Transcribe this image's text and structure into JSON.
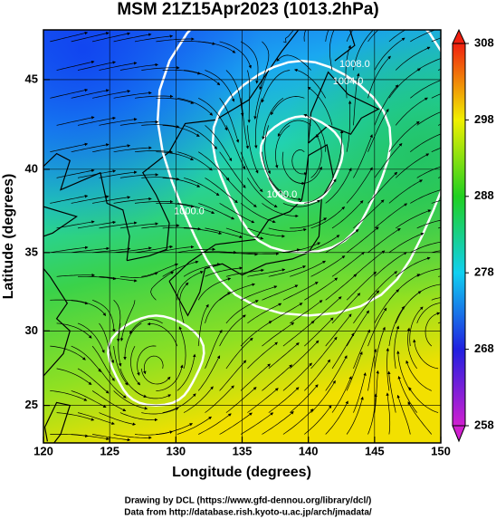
{
  "title": "MSM 21Z15Apr2023 (1013.2hPa)",
  "x_axis": {
    "label": "Longitude (degrees)",
    "lim": [
      120,
      150
    ],
    "ticks": [
      120,
      125,
      130,
      135,
      140,
      145,
      150
    ]
  },
  "y_axis": {
    "label": "Latitude  (degrees)",
    "lim": [
      22.4,
      47.6
    ],
    "ticks": [
      25,
      30,
      35,
      40,
      45
    ],
    "projection": "mercator"
  },
  "colorbar": {
    "lim": [
      258,
      308
    ],
    "ticks": [
      258,
      268,
      278,
      288,
      298,
      308
    ]
  },
  "contour_labels": [
    "1008.0",
    "1004.0",
    "1000.0",
    "1000.0"
  ],
  "credits": [
    "Drawing by DCL (https://www.gfd-dennou.org/library/dcl/)",
    "Data from http://database.rish.kyoto-u.ac.jp/arch/jmadata/"
  ]
}
